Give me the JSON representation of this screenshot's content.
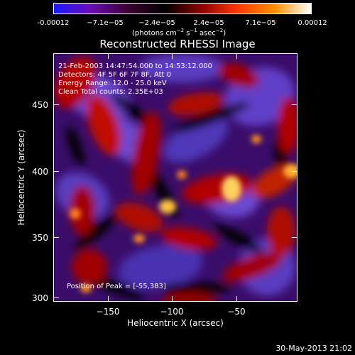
{
  "colorbar": {
    "ticks": [
      "-0.00012",
      "−7.1e−05",
      "−2.4e−05",
      "2.4e−05",
      "7.1e−05",
      "0.00012"
    ],
    "units": "(photons cm",
    "units_exp1": "−2",
    "units_mid": " s",
    "units_exp2": "−1",
    "units_mid2": " asec",
    "units_exp3": "−2",
    "units_end": ")",
    "colors": [
      "#1a1aff",
      "#6a0db5",
      "#3a0030",
      "#000000",
      "#8a0000",
      "#ff3300",
      "#ff9000",
      "#ffffff"
    ]
  },
  "title": "Reconstructed RHESSI Image",
  "info": {
    "line1": "21-Feb-2003 14:47:54.000 to 14:53:12.000",
    "line2": "Detectors: 4F 5F 6F 7F 8F, Att 0",
    "line3": "Energy Range: 12.0 - 25.0 keV",
    "line4": "Clean     Total counts: 2.35E+03",
    "peak": "Position of Peak = [-55,383]"
  },
  "axes": {
    "ylabel": "Heliocentric Y (arcsec)",
    "xlabel": "Heliocentric X (arcsec)",
    "yticks": [
      "450",
      "400",
      "350",
      "300"
    ],
    "xticks": [
      "−150",
      "−100",
      "−50"
    ]
  },
  "footer": {
    "date": "30-May-2013 21:02"
  }
}
